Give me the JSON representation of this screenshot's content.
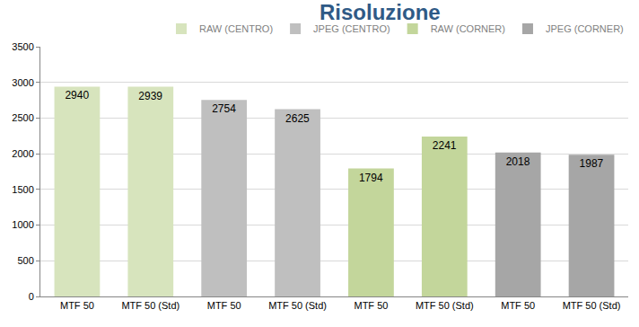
{
  "chart_data": {
    "type": "bar",
    "title": "Risoluzione",
    "categories": [
      "MTF 50",
      "MTF 50 (Std)",
      "MTF 50",
      "MTF 50 (Std)",
      "MTF 50",
      "MTF 50 (Std)",
      "MTF 50",
      "MTF 50 (Std)"
    ],
    "series": [
      {
        "name": "RAW (CENTRO)",
        "color": "#d7e4bd",
        "values": [
          2940,
          2939,
          null,
          null,
          null,
          null,
          null,
          null
        ]
      },
      {
        "name": "JPEG (CENTRO)",
        "color": "#bfbfbf",
        "values": [
          null,
          null,
          2754,
          2625,
          null,
          null,
          null,
          null
        ]
      },
      {
        "name": "RAW (CORNER)",
        "color": "#c3d69b",
        "values": [
          null,
          null,
          null,
          null,
          1794,
          2241,
          null,
          null
        ]
      },
      {
        "name": "JPEG (CORNER)",
        "color": "#a6a6a6",
        "values": [
          null,
          null,
          null,
          null,
          null,
          null,
          2018,
          1987
        ]
      }
    ],
    "ylim": [
      0,
      3500
    ],
    "yticks": [
      0,
      500,
      1000,
      1500,
      2000,
      2500,
      3000,
      3500
    ],
    "grid": true,
    "data_labels": true,
    "legend": "top right"
  }
}
